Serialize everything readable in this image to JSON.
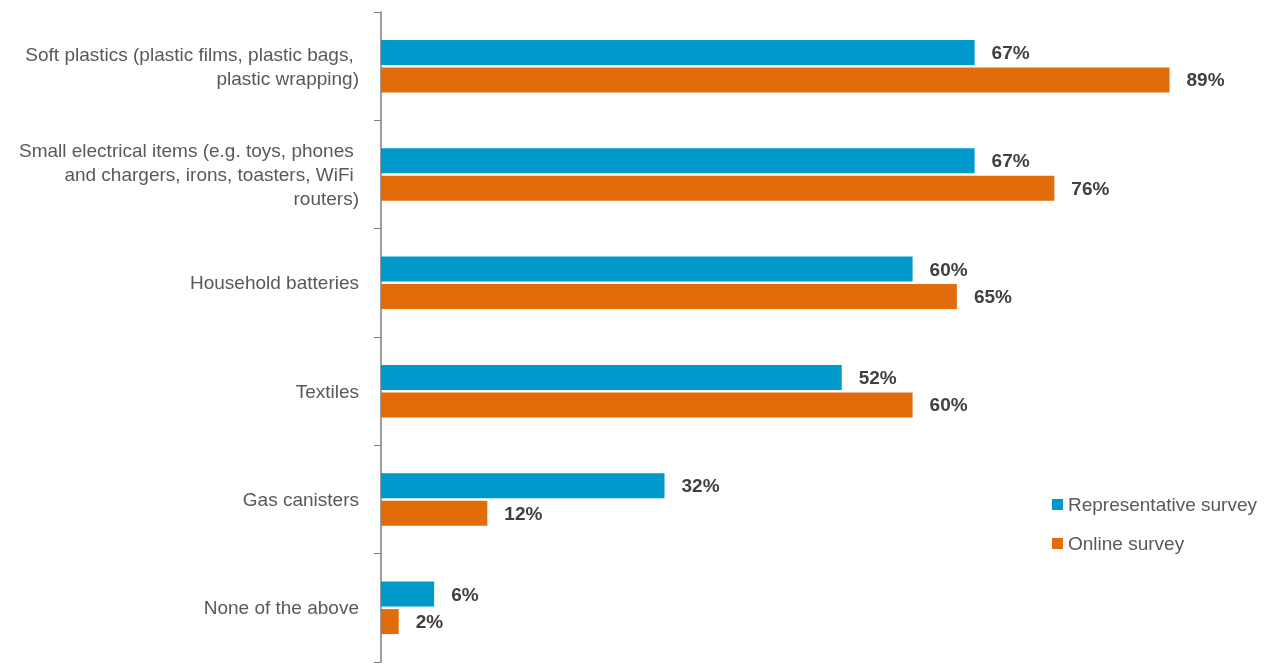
{
  "chart_data": {
    "type": "bar",
    "orientation": "horizontal",
    "categories": [
      "Soft plastics (plastic films, plastic bags, plastic wrapping)",
      "Small electrical items (e.g. toys, phones and chargers, irons, toasters, WiFi routers)",
      "Household batteries",
      "Textiles",
      "Gas canisters",
      "None of the above"
    ],
    "series": [
      {
        "name": "Representative survey",
        "color": "#0099cc",
        "values": [
          67,
          67,
          60,
          52,
          32,
          6
        ],
        "value_labels": [
          "67%",
          "67%",
          "60%",
          "52%",
          "32%",
          "6%"
        ]
      },
      {
        "name": "Online survey",
        "color": "#e36c0a",
        "values": [
          89,
          76,
          65,
          60,
          12,
          2
        ],
        "value_labels": [
          "89%",
          "76%",
          "65%",
          "60%",
          "12%",
          "2%"
        ]
      }
    ],
    "tick_labels": "y",
    "grid": false,
    "legend": "right"
  }
}
